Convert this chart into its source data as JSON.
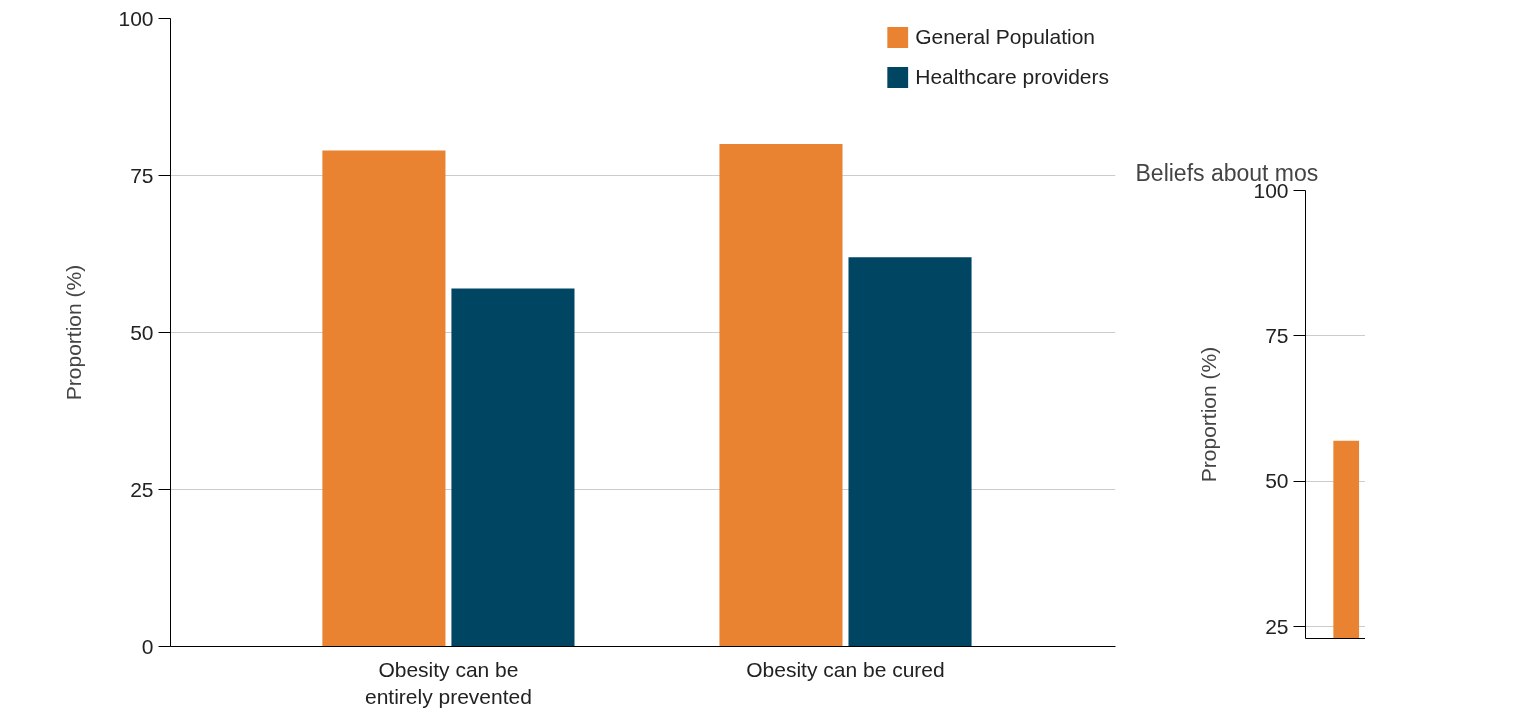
{
  "chart_data": [
    {
      "type": "bar",
      "ylabel": "Proportion (%)",
      "categories": [
        "Obesity can be entirely prevented",
        "Obesity can be cured"
      ],
      "series": [
        {
          "name": "General Population",
          "color": "#e98331",
          "values": [
            79,
            80
          ]
        },
        {
          "name": "Healthcare providers",
          "color": "#004562",
          "values": [
            57,
            62
          ]
        }
      ],
      "ylim": [
        0,
        100
      ],
      "yticks": [
        0,
        25,
        50,
        75,
        100
      ],
      "grid": "y",
      "legend": "top right"
    },
    {
      "type": "bar",
      "title": "Beliefs about mos",
      "ylabel": "Proportion (%)",
      "categories": [
        null
      ],
      "series": [
        {
          "color": "#e98331",
          "values": [
            57
          ]
        }
      ],
      "ylim": [
        23,
        100
      ],
      "yticks": [
        25,
        50,
        75,
        100
      ],
      "grid": "y"
    }
  ]
}
